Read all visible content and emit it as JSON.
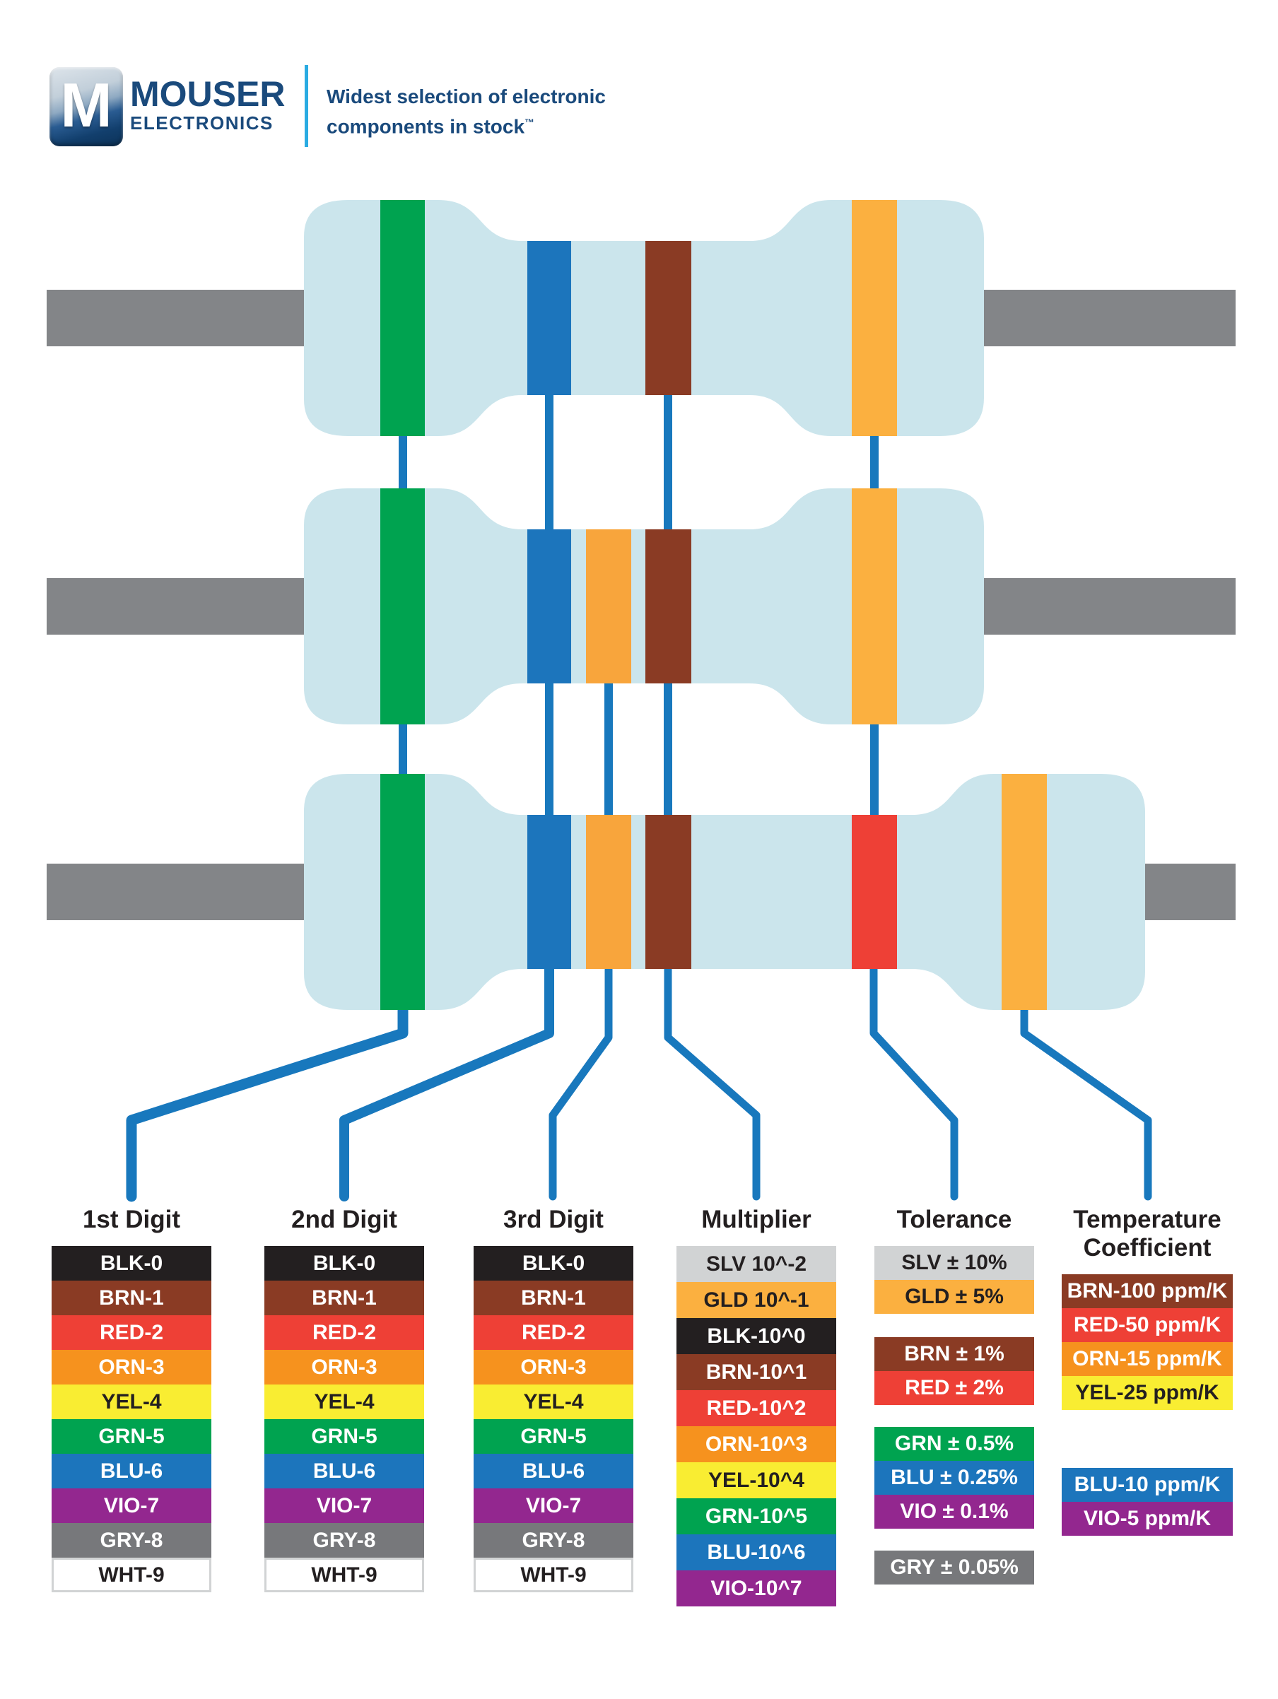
{
  "brand": {
    "logo_letter": "M",
    "name_line1": "MOUSER",
    "name_line2": "ELECTRONICS",
    "tagline_line1": "Widest selection of electronic",
    "tagline_line2": "components in stock",
    "tagline_tm": "™"
  },
  "colors": {
    "body": "#cbe5ec",
    "lead": "#838588",
    "line": "#1878bd",
    "navy": "#1a4a7c",
    "cyan": "#2aabe2",
    "ink": "#231f20",
    "black": "#231f20",
    "brown": "#8a3b24",
    "red": "#ee4036",
    "orange": "#f6921e",
    "band_orange": "#f8a53c",
    "yellow": "#f9ed32",
    "green": "#00a350",
    "blue": "#1c75bc",
    "violet": "#93278f",
    "gray": "#77787b",
    "silver": "#d1d3d4",
    "gold": "#fbb040",
    "white": "#ffffff"
  },
  "resistors": [
    {
      "type": "4-band",
      "bands": [
        {
          "role": "1st-digit",
          "color": "green"
        },
        {
          "role": "2nd-digit",
          "color": "blue"
        },
        {
          "role": "multiplier",
          "color": "brown"
        },
        {
          "role": "tolerance",
          "color": "gold"
        }
      ]
    },
    {
      "type": "5-band",
      "bands": [
        {
          "role": "1st-digit",
          "color": "green"
        },
        {
          "role": "2nd-digit",
          "color": "blue"
        },
        {
          "role": "3rd-digit",
          "color": "band_orange"
        },
        {
          "role": "multiplier",
          "color": "brown"
        },
        {
          "role": "tolerance",
          "color": "gold"
        }
      ]
    },
    {
      "type": "6-band",
      "bands": [
        {
          "role": "1st-digit",
          "color": "green"
        },
        {
          "role": "2nd-digit",
          "color": "blue"
        },
        {
          "role": "3rd-digit",
          "color": "band_orange"
        },
        {
          "role": "multiplier",
          "color": "brown"
        },
        {
          "role": "tolerance",
          "color": "red"
        },
        {
          "role": "temperature-coefficient",
          "color": "gold"
        }
      ]
    }
  ],
  "legend": {
    "columns": [
      {
        "title": "1st Digit",
        "items": [
          {
            "label": "BLK-0",
            "bg": "black",
            "fg": "white"
          },
          {
            "label": "BRN-1",
            "bg": "brown",
            "fg": "white"
          },
          {
            "label": "RED-2",
            "bg": "red",
            "fg": "white"
          },
          {
            "label": "ORN-3",
            "bg": "orange",
            "fg": "white"
          },
          {
            "label": "YEL-4",
            "bg": "yellow",
            "fg": "black"
          },
          {
            "label": "GRN-5",
            "bg": "green",
            "fg": "white"
          },
          {
            "label": "BLU-6",
            "bg": "blue",
            "fg": "white"
          },
          {
            "label": "VIO-7",
            "bg": "violet",
            "fg": "white"
          },
          {
            "label": "GRY-8",
            "bg": "gray",
            "fg": "white"
          },
          {
            "label": "WHT-9",
            "bg": "white",
            "fg": "black"
          }
        ]
      },
      {
        "title": "2nd Digit",
        "items": [
          {
            "label": "BLK-0",
            "bg": "black",
            "fg": "white"
          },
          {
            "label": "BRN-1",
            "bg": "brown",
            "fg": "white"
          },
          {
            "label": "RED-2",
            "bg": "red",
            "fg": "white"
          },
          {
            "label": "ORN-3",
            "bg": "orange",
            "fg": "white"
          },
          {
            "label": "YEL-4",
            "bg": "yellow",
            "fg": "black"
          },
          {
            "label": "GRN-5",
            "bg": "green",
            "fg": "white"
          },
          {
            "label": "BLU-6",
            "bg": "blue",
            "fg": "white"
          },
          {
            "label": "VIO-7",
            "bg": "violet",
            "fg": "white"
          },
          {
            "label": "GRY-8",
            "bg": "gray",
            "fg": "white"
          },
          {
            "label": "WHT-9",
            "bg": "white",
            "fg": "black"
          }
        ]
      },
      {
        "title": "3rd Digit",
        "items": [
          {
            "label": "BLK-0",
            "bg": "black",
            "fg": "white"
          },
          {
            "label": "BRN-1",
            "bg": "brown",
            "fg": "white"
          },
          {
            "label": "RED-2",
            "bg": "red",
            "fg": "white"
          },
          {
            "label": "ORN-3",
            "bg": "orange",
            "fg": "white"
          },
          {
            "label": "YEL-4",
            "bg": "yellow",
            "fg": "black"
          },
          {
            "label": "GRN-5",
            "bg": "green",
            "fg": "white"
          },
          {
            "label": "BLU-6",
            "bg": "blue",
            "fg": "white"
          },
          {
            "label": "VIO-7",
            "bg": "violet",
            "fg": "white"
          },
          {
            "label": "GRY-8",
            "bg": "gray",
            "fg": "white"
          },
          {
            "label": "WHT-9",
            "bg": "white",
            "fg": "black"
          }
        ]
      },
      {
        "title": "Multiplier",
        "items": [
          {
            "label": "SLV 10^-2",
            "bg": "silver",
            "fg": "black"
          },
          {
            "label": "GLD 10^-1",
            "bg": "gold",
            "fg": "black"
          },
          {
            "label": "BLK-10^0",
            "bg": "black",
            "fg": "white"
          },
          {
            "label": "BRN-10^1",
            "bg": "brown",
            "fg": "white"
          },
          {
            "label": "RED-10^2",
            "bg": "red",
            "fg": "white"
          },
          {
            "label": "ORN-10^3",
            "bg": "orange",
            "fg": "white"
          },
          {
            "label": "YEL-10^4",
            "bg": "yellow",
            "fg": "black"
          },
          {
            "label": "GRN-10^5",
            "bg": "green",
            "fg": "white"
          },
          {
            "label": "BLU-10^6",
            "bg": "blue",
            "fg": "white"
          },
          {
            "label": "VIO-10^7",
            "bg": "violet",
            "fg": "white"
          }
        ]
      },
      {
        "title": "Tolerance",
        "items": [
          {
            "label": "SLV ± 10%",
            "bg": "silver",
            "fg": "black"
          },
          {
            "label": "GLD ± 5%",
            "bg": "gold",
            "fg": "black"
          },
          {
            "label": "BRN ± 1%",
            "bg": "brown",
            "fg": "white",
            "gap": 33
          },
          {
            "label": "RED ± 2%",
            "bg": "red",
            "fg": "white"
          },
          {
            "label": "GRN ± 0.5%",
            "bg": "green",
            "fg": "white",
            "gap": 31
          },
          {
            "label": "BLU ± 0.25%",
            "bg": "blue",
            "fg": "white"
          },
          {
            "label": "VIO ± 0.1%",
            "bg": "violet",
            "fg": "white"
          },
          {
            "label": "GRY ± 0.05%",
            "bg": "gray",
            "fg": "white",
            "gap": 31
          }
        ]
      },
      {
        "title": "Temperature Coefficient",
        "items": [
          {
            "label": "BRN-100 ppm/K",
            "bg": "brown",
            "fg": "white"
          },
          {
            "label": "RED-50 ppm/K",
            "bg": "red",
            "fg": "white"
          },
          {
            "label": "ORN-15 ppm/K",
            "bg": "orange",
            "fg": "white"
          },
          {
            "label": "YEL-25 ppm/K",
            "bg": "yellow",
            "fg": "black"
          },
          {
            "label": "BLU-10 ppm/K",
            "bg": "blue",
            "fg": "white",
            "gap": 82
          },
          {
            "label": "VIO-5 ppm/K",
            "bg": "violet",
            "fg": "white"
          }
        ]
      }
    ]
  }
}
